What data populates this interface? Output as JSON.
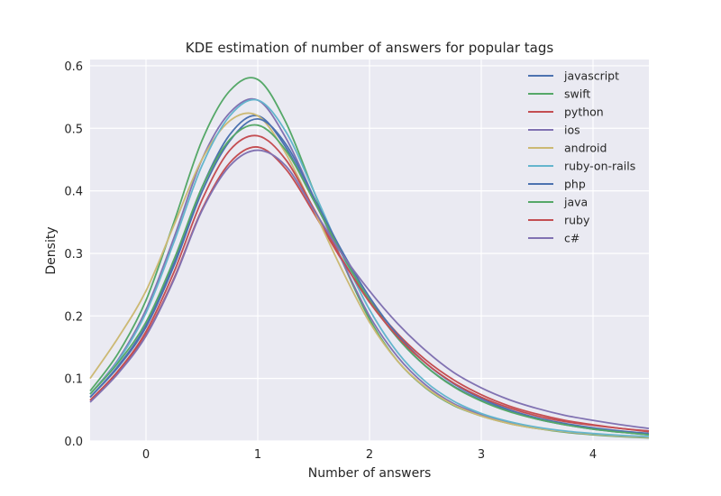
{
  "chart_data": {
    "type": "line",
    "title": "KDE estimation of number of answers for popular tags",
    "xlabel": "Number of answers",
    "ylabel": "Density",
    "xlim": [
      -0.5,
      4.5
    ],
    "ylim": [
      0,
      0.61
    ],
    "xticks": [
      0,
      1,
      2,
      3,
      4
    ],
    "yticks": [
      0.0,
      0.1,
      0.2,
      0.3,
      0.4,
      0.5,
      0.6
    ],
    "xtick_labels": [
      "0",
      "1",
      "2",
      "3",
      "4"
    ],
    "ytick_labels": [
      "0.0",
      "0.1",
      "0.2",
      "0.3",
      "0.4",
      "0.5",
      "0.6"
    ],
    "grid": true,
    "legend_position": "top-right",
    "x": [
      -0.5,
      -0.25,
      0.0,
      0.25,
      0.5,
      0.75,
      1.0,
      1.25,
      1.5,
      1.75,
      2.0,
      2.25,
      2.5,
      2.75,
      3.0,
      3.25,
      3.5,
      3.75,
      4.0,
      4.25,
      4.5
    ],
    "series": [
      {
        "name": "javascript",
        "color": "#4c72b0",
        "values": [
          0.07,
          0.12,
          0.185,
          0.285,
          0.405,
          0.49,
          0.52,
          0.47,
          0.385,
          0.3,
          0.225,
          0.165,
          0.12,
          0.088,
          0.065,
          0.048,
          0.035,
          0.026,
          0.019,
          0.014,
          0.01
        ]
      },
      {
        "name": "swift",
        "color": "#55a868",
        "values": [
          0.08,
          0.14,
          0.225,
          0.35,
          0.48,
          0.56,
          0.578,
          0.51,
          0.4,
          0.29,
          0.195,
          0.128,
          0.085,
          0.057,
          0.04,
          0.028,
          0.02,
          0.014,
          0.01,
          0.007,
          0.005
        ]
      },
      {
        "name": "python",
        "color": "#c44e52",
        "values": [
          0.065,
          0.11,
          0.17,
          0.26,
          0.37,
          0.445,
          0.47,
          0.435,
          0.365,
          0.29,
          0.225,
          0.172,
          0.13,
          0.098,
          0.074,
          0.056,
          0.043,
          0.033,
          0.026,
          0.02,
          0.015
        ]
      },
      {
        "name": "ios",
        "color": "#8172b2",
        "values": [
          0.075,
          0.13,
          0.21,
          0.325,
          0.45,
          0.525,
          0.545,
          0.485,
          0.39,
          0.29,
          0.2,
          0.135,
          0.09,
          0.06,
          0.042,
          0.03,
          0.021,
          0.015,
          0.011,
          0.008,
          0.006
        ]
      },
      {
        "name": "android",
        "color": "#ccb974",
        "values": [
          0.1,
          0.165,
          0.24,
          0.345,
          0.45,
          0.512,
          0.52,
          0.46,
          0.37,
          0.275,
          0.19,
          0.128,
          0.086,
          0.058,
          0.04,
          0.028,
          0.02,
          0.015,
          0.011,
          0.008,
          0.006
        ]
      },
      {
        "name": "ruby-on-rails",
        "color": "#64b5cd",
        "values": [
          0.075,
          0.128,
          0.205,
          0.318,
          0.44,
          0.52,
          0.545,
          0.495,
          0.4,
          0.3,
          0.21,
          0.142,
          0.095,
          0.064,
          0.044,
          0.031,
          0.022,
          0.016,
          0.012,
          0.009,
          0.007
        ]
      },
      {
        "name": "php",
        "color": "#4c72b0",
        "values": [
          0.07,
          0.118,
          0.182,
          0.28,
          0.398,
          0.48,
          0.515,
          0.475,
          0.39,
          0.305,
          0.23,
          0.17,
          0.125,
          0.092,
          0.068,
          0.05,
          0.037,
          0.028,
          0.021,
          0.016,
          0.012
        ]
      },
      {
        "name": "java",
        "color": "#55a868",
        "values": [
          0.075,
          0.125,
          0.19,
          0.29,
          0.405,
          0.482,
          0.505,
          0.465,
          0.385,
          0.3,
          0.225,
          0.165,
          0.12,
          0.087,
          0.064,
          0.047,
          0.035,
          0.026,
          0.019,
          0.014,
          0.01
        ]
      },
      {
        "name": "ruby",
        "color": "#c44e52",
        "values": [
          0.065,
          0.112,
          0.175,
          0.27,
          0.385,
          0.465,
          0.488,
          0.45,
          0.372,
          0.292,
          0.222,
          0.167,
          0.125,
          0.093,
          0.07,
          0.053,
          0.04,
          0.031,
          0.025,
          0.02,
          0.016
        ]
      },
      {
        "name": "c#",
        "color": "#8172b2",
        "values": [
          0.062,
          0.108,
          0.168,
          0.258,
          0.368,
          0.44,
          0.465,
          0.44,
          0.37,
          0.3,
          0.24,
          0.188,
          0.145,
          0.11,
          0.085,
          0.066,
          0.052,
          0.041,
          0.033,
          0.026,
          0.02
        ]
      }
    ]
  }
}
